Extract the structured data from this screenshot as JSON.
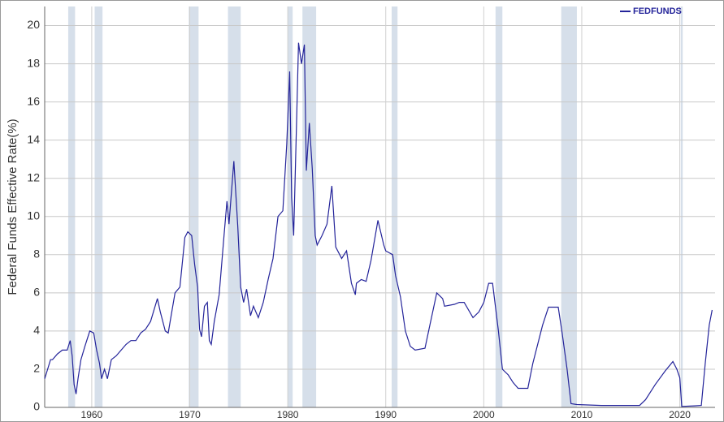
{
  "chart_data": {
    "type": "line",
    "y_label": "Federal Funds Effective Rate(%)",
    "legend_position": "top-right",
    "grid": true,
    "xlim": [
      1955.2,
      2023.6
    ],
    "ylim": [
      0,
      21
    ],
    "xticks": [
      1960,
      1970,
      1980,
      1990,
      2000,
      2010,
      2020
    ],
    "yticks": [
      0,
      2,
      4,
      6,
      8,
      10,
      12,
      14,
      16,
      18,
      20
    ],
    "recession_color": "#d6dfea",
    "recessions": [
      [
        1957.6,
        1958.3
      ],
      [
        1960.3,
        1961.1
      ],
      [
        1969.9,
        1970.9
      ],
      [
        1973.9,
        1975.2
      ],
      [
        1980.0,
        1980.5
      ],
      [
        1981.5,
        1982.9
      ],
      [
        1990.6,
        1991.2
      ],
      [
        2001.2,
        2001.9
      ],
      [
        2007.9,
        2009.5
      ],
      [
        2020.1,
        2020.3
      ]
    ],
    "x": [
      1955.2,
      1955.5,
      1955.8,
      1956.0,
      1956.5,
      1957.0,
      1957.5,
      1957.8,
      1958.0,
      1958.2,
      1958.4,
      1958.6,
      1958.9,
      1959.3,
      1959.8,
      1960.2,
      1960.5,
      1960.8,
      1961.0,
      1961.3,
      1961.6,
      1962.0,
      1962.5,
      1963.0,
      1963.5,
      1964.0,
      1964.5,
      1965.0,
      1965.5,
      1966.0,
      1966.7,
      1967.0,
      1967.5,
      1967.8,
      1968.0,
      1968.5,
      1969.0,
      1969.5,
      1969.8,
      1970.2,
      1970.5,
      1970.8,
      1971.0,
      1971.2,
      1971.5,
      1971.8,
      1972.0,
      1972.2,
      1972.5,
      1973.0,
      1973.5,
      1973.8,
      1974.0,
      1974.5,
      1974.9,
      1975.2,
      1975.5,
      1975.8,
      1976.2,
      1976.5,
      1977.0,
      1977.5,
      1978.0,
      1978.5,
      1979.0,
      1979.5,
      1979.9,
      1980.2,
      1980.4,
      1980.6,
      1980.9,
      1981.1,
      1981.4,
      1981.7,
      1981.9,
      1982.2,
      1982.5,
      1982.8,
      1983.0,
      1983.5,
      1984.0,
      1984.5,
      1984.9,
      1985.5,
      1986.0,
      1986.5,
      1986.9,
      1987.0,
      1987.5,
      1988.0,
      1988.5,
      1989.2,
      1989.8,
      1990.0,
      1990.7,
      1991.0,
      1991.5,
      1992.0,
      1992.5,
      1993.0,
      1994.0,
      1994.5,
      1995.2,
      1995.8,
      1996.0,
      1997.0,
      1997.5,
      1998.0,
      1998.9,
      1999.5,
      2000.0,
      2000.5,
      2000.9,
      2001.5,
      2001.9,
      2002.5,
      2003.0,
      2003.5,
      2004.5,
      2005.0,
      2006.0,
      2006.6,
      2007.6,
      2008.0,
      2008.5,
      2008.9,
      2009.5,
      2012.0,
      2015.9,
      2016.5,
      2017.5,
      2018.5,
      2019.3,
      2019.7,
      2020.0,
      2020.2,
      2021.5,
      2022.2,
      2022.6,
      2023.0,
      2023.3
    ],
    "series": [
      {
        "name": "FEDFUNDS",
        "color": "#24249a",
        "values": [
          1.5,
          2.0,
          2.5,
          2.5,
          2.8,
          3.0,
          3.0,
          3.5,
          2.7,
          1.2,
          0.7,
          1.5,
          2.5,
          3.2,
          4.0,
          3.9,
          3.0,
          2.3,
          1.5,
          2.0,
          1.5,
          2.5,
          2.7,
          3.0,
          3.3,
          3.5,
          3.5,
          3.9,
          4.1,
          4.5,
          5.7,
          5.0,
          4.0,
          3.9,
          4.5,
          6.0,
          6.3,
          8.9,
          9.2,
          9.0,
          7.5,
          6.3,
          4.1,
          3.7,
          5.3,
          5.5,
          3.5,
          3.3,
          4.5,
          5.9,
          9.0,
          10.8,
          9.6,
          12.9,
          9.5,
          6.3,
          5.5,
          6.2,
          4.8,
          5.3,
          4.7,
          5.5,
          6.7,
          7.8,
          10.0,
          10.3,
          13.8,
          17.6,
          11.0,
          9.0,
          15.0,
          19.1,
          18.0,
          19.0,
          12.4,
          14.9,
          12.5,
          9.0,
          8.5,
          9.0,
          9.6,
          11.6,
          8.4,
          7.8,
          8.2,
          6.5,
          5.9,
          6.5,
          6.7,
          6.6,
          7.7,
          9.8,
          8.5,
          8.2,
          8.0,
          6.9,
          5.8,
          4.0,
          3.2,
          3.0,
          3.1,
          4.3,
          6.0,
          5.7,
          5.3,
          5.4,
          5.5,
          5.5,
          4.7,
          5.0,
          5.5,
          6.5,
          6.5,
          4.0,
          2.0,
          1.7,
          1.3,
          1.0,
          1.0,
          2.3,
          4.3,
          5.25,
          5.25,
          3.9,
          2.0,
          0.2,
          0.15,
          0.1,
          0.1,
          0.4,
          1.2,
          1.9,
          2.4,
          2.0,
          1.55,
          0.05,
          0.08,
          0.1,
          2.3,
          4.3,
          5.1
        ]
      }
    ]
  }
}
